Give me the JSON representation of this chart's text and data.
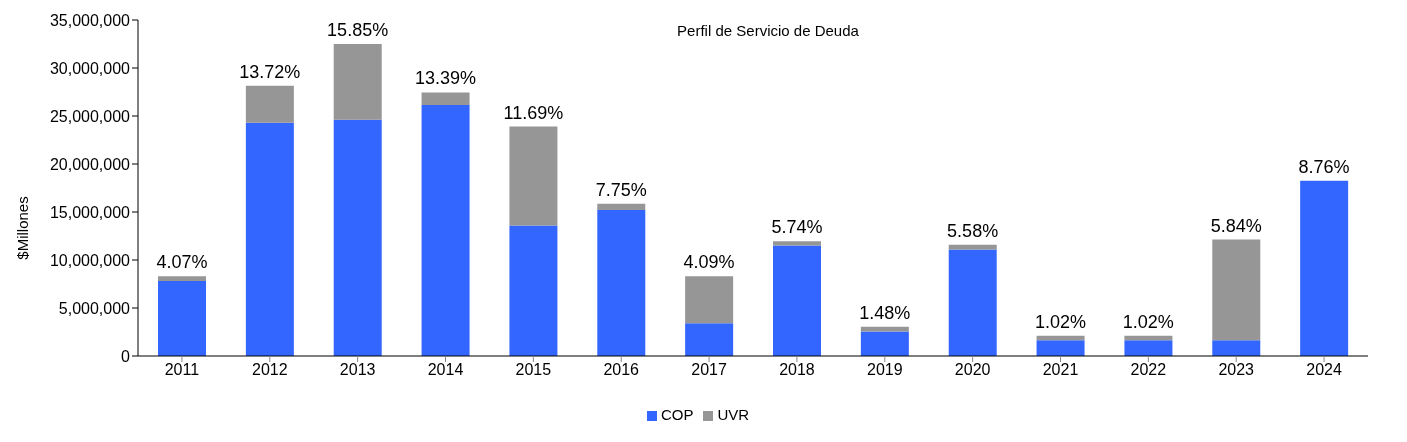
{
  "chart_data": {
    "type": "bar",
    "stacked": true,
    "title": "Perfil de Servicio de Deuda",
    "ylabel": "$Millones",
    "categories": [
      "2011",
      "2012",
      "2013",
      "2014",
      "2015",
      "2016",
      "2017",
      "2018",
      "2019",
      "2020",
      "2021",
      "2022",
      "2023",
      "2024"
    ],
    "series": [
      {
        "name": "COP",
        "color": "#3366ff",
        "values": [
          7800000,
          24300000,
          24600000,
          26150000,
          13600000,
          15200000,
          3400000,
          11500000,
          2550000,
          11100000,
          1630000,
          1630000,
          1630000,
          18250000
        ]
      },
      {
        "name": "UVR",
        "color": "#969696",
        "values": [
          500000,
          3850000,
          7900000,
          1300000,
          10300000,
          650000,
          4900000,
          450000,
          500000,
          500000,
          480000,
          480000,
          10500000,
          0
        ]
      }
    ],
    "ylim": [
      0,
      35000000
    ],
    "yticks": [
      {
        "value": 0,
        "label": "0"
      },
      {
        "value": 5000000,
        "label": "5,000,000"
      },
      {
        "value": 10000000,
        "label": "10,000,000"
      },
      {
        "value": 15000000,
        "label": "15,000,000"
      },
      {
        "value": 20000000,
        "label": "20,000,000"
      },
      {
        "value": 25000000,
        "label": "25,000,000"
      },
      {
        "value": 30000000,
        "label": "30,000,000"
      },
      {
        "value": 35000000,
        "label": "35,000,000"
      }
    ],
    "annotations": [
      {
        "text": "4.07%",
        "x": "2011",
        "y": 8300000
      },
      {
        "text": "13.72%",
        "x": "2012",
        "y": 28150000
      },
      {
        "text": "15.85%",
        "x": "2013",
        "y": 32500000
      },
      {
        "text": "13.39%",
        "x": "2014",
        "y": 27450000
      },
      {
        "text": "11.69%",
        "x": "2015",
        "y": 23900000
      },
      {
        "text": "7.75%",
        "x": "2016",
        "y": 15850000
      },
      {
        "text": "4.09%",
        "x": "2017",
        "y": 8300000
      },
      {
        "text": "5.74%",
        "x": "2018",
        "y": 11950000
      },
      {
        "text": "1.48%",
        "x": "2019",
        "y": 3050000
      },
      {
        "text": "5.58%",
        "x": "2020",
        "y": 11600000
      },
      {
        "text": "1.02%",
        "x": "2021",
        "y": 2110000
      },
      {
        "text": "1.02%",
        "x": "2022",
        "y": 2110000
      },
      {
        "text": "5.84%",
        "x": "2023",
        "y": 12130000
      },
      {
        "text": "8.76%",
        "x": "2024",
        "y": 18250000
      }
    ],
    "grid": false,
    "legend": "bottom"
  }
}
